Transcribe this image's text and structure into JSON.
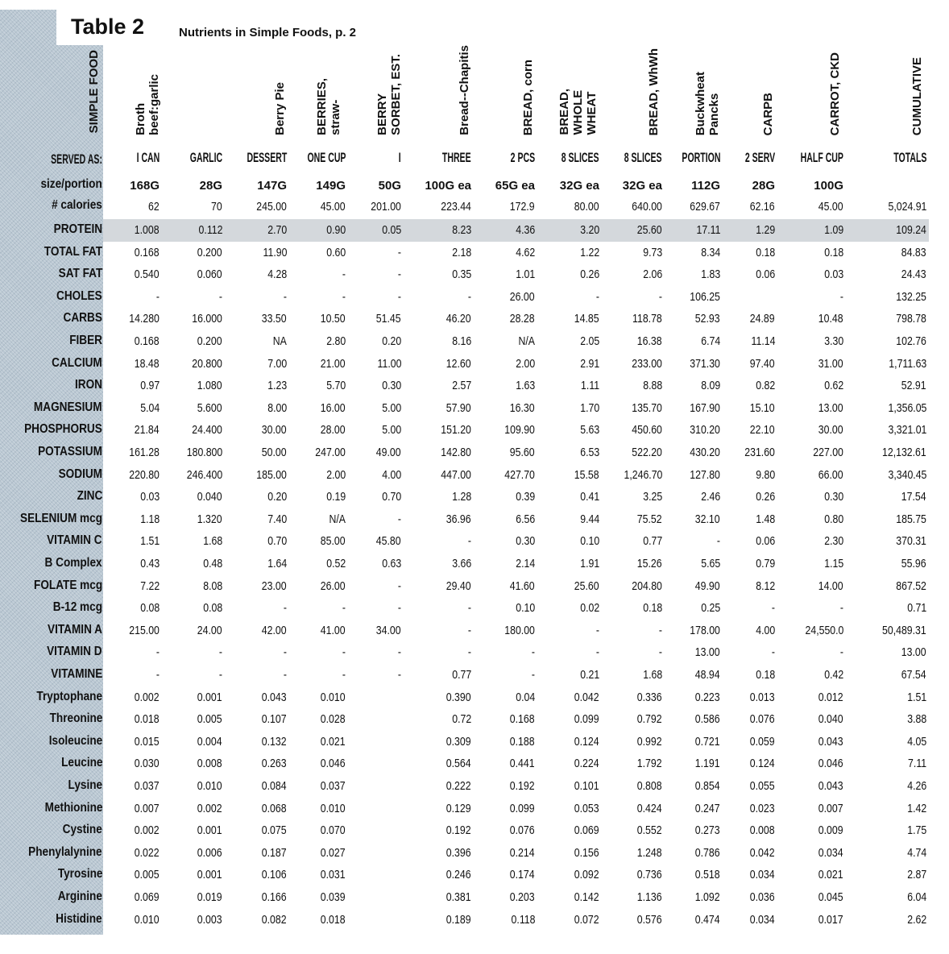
{
  "title": "Table 2",
  "subtitle": "Nutrients in Simple Foods, p. 2",
  "row_header": "SIMPLE FOOD",
  "served_label": "SERVED AS:",
  "size_label": "size/portion",
  "calories_label": "# calories",
  "highlight_color": "#d4d8dc",
  "columns": [
    {
      "header": "Broth\nbeef:garlic",
      "served": "I CAN",
      "size": "168G",
      "calories": "62"
    },
    {
      "header": "",
      "served": "GARLIC",
      "size": "28G",
      "calories": "70"
    },
    {
      "header": "Berry Pie",
      "served": "DESSERT",
      "size": "147G",
      "calories": "245.00"
    },
    {
      "header": "BERRIES,\nstraw-",
      "served": "ONE CUP",
      "size": "149G",
      "calories": "45.00"
    },
    {
      "header": "BERRY\nSORBET, EST.",
      "served": "I",
      "size": "50G",
      "calories": "201.00"
    },
    {
      "header": "Bread--Chapitis",
      "served": "THREE",
      "size": "100G ea",
      "calories": "223.44"
    },
    {
      "header": "BREAD, corn",
      "served": "2 PCS",
      "size": "65G ea",
      "calories": "172.9"
    },
    {
      "header": "BREAD,\nWHOLE\nWHEAT",
      "served": "8 SLICES",
      "size": "32G ea",
      "calories": "80.00"
    },
    {
      "header": "BREAD, WhWh",
      "served": "8 SLICES",
      "size": "32G ea",
      "calories": "640.00"
    },
    {
      "header": "Buckwheat\nPancks",
      "served": "PORTION",
      "size": "112G",
      "calories": "629.67"
    },
    {
      "header": "CARPB",
      "served": "2 SERV",
      "size": "28G",
      "calories": "62.16"
    },
    {
      "header": "CARROT, CKD",
      "served": "HALF CUP",
      "size": "100G",
      "calories": "45.00"
    },
    {
      "header": "CUMULATIVE",
      "served": "TOTALS",
      "size": "",
      "calories": "5,024.91"
    }
  ],
  "rows": [
    {
      "label": "PROTEIN",
      "values": [
        "1.008",
        "0.112",
        "2.70",
        "0.90",
        "0.05",
        "8.23",
        "4.36",
        "3.20",
        "25.60",
        "17.11",
        "1.29",
        "1.09",
        "109.24"
      ]
    },
    {
      "label": "TOTAL FAT",
      "values": [
        "0.168",
        "0.200",
        "11.90",
        "0.60",
        "-",
        "2.18",
        "4.62",
        "1.22",
        "9.73",
        "8.34",
        "0.18",
        "0.18",
        "84.83"
      ]
    },
    {
      "label": "SAT FAT",
      "values": [
        "0.540",
        "0.060",
        "4.28",
        "-",
        "-",
        "0.35",
        "1.01",
        "0.26",
        "2.06",
        "1.83",
        "0.06",
        "0.03",
        "24.43"
      ]
    },
    {
      "label": "CHOLES",
      "values": [
        "-",
        "-",
        "-",
        "-",
        "-",
        "-",
        "26.00",
        "-",
        "-",
        "106.25",
        "",
        "-",
        "132.25"
      ]
    },
    {
      "label": "CARBS",
      "values": [
        "14.280",
        "16.000",
        "33.50",
        "10.50",
        "51.45",
        "46.20",
        "28.28",
        "14.85",
        "118.78",
        "52.93",
        "24.89",
        "10.48",
        "798.78"
      ]
    },
    {
      "label": "FIBER",
      "values": [
        "0.168",
        "0.200",
        "NA",
        "2.80",
        "0.20",
        "8.16",
        "N/A",
        "2.05",
        "16.38",
        "6.74",
        "11.14",
        "3.30",
        "102.76"
      ]
    },
    {
      "label": "CALCIUM",
      "values": [
        "18.48",
        "20.800",
        "7.00",
        "21.00",
        "11.00",
        "12.60",
        "2.00",
        "2.91",
        "233.00",
        "371.30",
        "97.40",
        "31.00",
        "1,711.63"
      ]
    },
    {
      "label": "IRON",
      "values": [
        "0.97",
        "1.080",
        "1.23",
        "5.70",
        "0.30",
        "2.57",
        "1.63",
        "1.11",
        "8.88",
        "8.09",
        "0.82",
        "0.62",
        "52.91"
      ]
    },
    {
      "label": "MAGNESIUM",
      "values": [
        "5.04",
        "5.600",
        "8.00",
        "16.00",
        "5.00",
        "57.90",
        "16.30",
        "1.70",
        "135.70",
        "167.90",
        "15.10",
        "13.00",
        "1,356.05"
      ]
    },
    {
      "label": "PHOSPHORUS",
      "values": [
        "21.84",
        "24.400",
        "30.00",
        "28.00",
        "5.00",
        "151.20",
        "109.90",
        "5.63",
        "450.60",
        "310.20",
        "22.10",
        "30.00",
        "3,321.01"
      ]
    },
    {
      "label": "POTASSIUM",
      "values": [
        "161.28",
        "180.800",
        "50.00",
        "247.00",
        "49.00",
        "142.80",
        "95.60",
        "6.53",
        "522.20",
        "430.20",
        "231.60",
        "227.00",
        "12,132.61"
      ]
    },
    {
      "label": "SODIUM",
      "values": [
        "220.80",
        "246.400",
        "185.00",
        "2.00",
        "4.00",
        "447.00",
        "427.70",
        "15.58",
        "1,246.70",
        "127.80",
        "9.80",
        "66.00",
        "3,340.45"
      ]
    },
    {
      "label": "ZINC",
      "values": [
        "0.03",
        "0.040",
        "0.20",
        "0.19",
        "0.70",
        "1.28",
        "0.39",
        "0.41",
        "3.25",
        "2.46",
        "0.26",
        "0.30",
        "17.54"
      ]
    },
    {
      "label": "SELENIUM mcg",
      "values": [
        "1.18",
        "1.320",
        "7.40",
        "N/A",
        "-",
        "36.96",
        "6.56",
        "9.44",
        "75.52",
        "32.10",
        "1.48",
        "0.80",
        "185.75"
      ]
    },
    {
      "label": "VITAMIN C",
      "values": [
        "1.51",
        "1.68",
        "0.70",
        "85.00",
        "45.80",
        "-",
        "0.30",
        "0.10",
        "0.77",
        "-",
        "0.06",
        "2.30",
        "370.31"
      ]
    },
    {
      "label": "B Complex",
      "values": [
        "0.43",
        "0.48",
        "1.64",
        "0.52",
        "0.63",
        "3.66",
        "2.14",
        "1.91",
        "15.26",
        "5.65",
        "0.79",
        "1.15",
        "55.96"
      ]
    },
    {
      "label": "FOLATE mcg",
      "values": [
        "7.22",
        "8.08",
        "23.00",
        "26.00",
        "-",
        "29.40",
        "41.60",
        "25.60",
        "204.80",
        "49.90",
        "8.12",
        "14.00",
        "867.52"
      ]
    },
    {
      "label": "B-12 mcg",
      "values": [
        "0.08",
        "0.08",
        "-",
        "-",
        "-",
        "-",
        "0.10",
        "0.02",
        "0.18",
        "0.25",
        "-",
        "-",
        "0.71"
      ]
    },
    {
      "label": "VITAMIN A",
      "values": [
        "215.00",
        "24.00",
        "42.00",
        "41.00",
        "34.00",
        "-",
        "180.00",
        "-",
        "-",
        "178.00",
        "4.00",
        "24,550.0",
        "50,489.31"
      ]
    },
    {
      "label": "VITAMIN D",
      "values": [
        "-",
        "-",
        "-",
        "-",
        "-",
        "-",
        "-",
        "-",
        "-",
        "13.00",
        "-",
        "-",
        "13.00"
      ]
    },
    {
      "label": "VITAMINE",
      "values": [
        "-",
        "-",
        "-",
        "-",
        "-",
        "0.77",
        "-",
        "0.21",
        "1.68",
        "48.94",
        "0.18",
        "0.42",
        "67.54"
      ]
    },
    {
      "label": "Tryptophane",
      "values": [
        "0.002",
        "0.001",
        "0.043",
        "0.010",
        "",
        "0.390",
        "0.04",
        "0.042",
        "0.336",
        "0.223",
        "0.013",
        "0.012",
        "1.51"
      ]
    },
    {
      "label": "Threonine",
      "values": [
        "0.018",
        "0.005",
        "0.107",
        "0.028",
        "",
        "0.72",
        "0.168",
        "0.099",
        "0.792",
        "0.586",
        "0.076",
        "0.040",
        "3.88"
      ]
    },
    {
      "label": "Isoleucine",
      "values": [
        "0.015",
        "0.004",
        "0.132",
        "0.021",
        "",
        "0.309",
        "0.188",
        "0.124",
        "0.992",
        "0.721",
        "0.059",
        "0.043",
        "4.05"
      ]
    },
    {
      "label": "Leucine",
      "values": [
        "0.030",
        "0.008",
        "0.263",
        "0.046",
        "",
        "0.564",
        "0.441",
        "0.224",
        "1.792",
        "1.191",
        "0.124",
        "0.046",
        "7.11"
      ]
    },
    {
      "label": "Lysine",
      "values": [
        "0.037",
        "0.010",
        "0.084",
        "0.037",
        "",
        "0.222",
        "0.192",
        "0.101",
        "0.808",
        "0.854",
        "0.055",
        "0.043",
        "4.26"
      ]
    },
    {
      "label": "Methionine",
      "values": [
        "0.007",
        "0.002",
        "0.068",
        "0.010",
        "",
        "0.129",
        "0.099",
        "0.053",
        "0.424",
        "0.247",
        "0.023",
        "0.007",
        "1.42"
      ]
    },
    {
      "label": "Cystine",
      "values": [
        "0.002",
        "0.001",
        "0.075",
        "0.070",
        "",
        "0.192",
        "0.076",
        "0.069",
        "0.552",
        "0.273",
        "0.008",
        "0.009",
        "1.75"
      ]
    },
    {
      "label": "Phenylalynine",
      "values": [
        "0.022",
        "0.006",
        "0.187",
        "0.027",
        "",
        "0.396",
        "0.214",
        "0.156",
        "1.248",
        "0.786",
        "0.042",
        "0.034",
        "4.74"
      ]
    },
    {
      "label": "Tyrosine",
      "values": [
        "0.005",
        "0.001",
        "0.106",
        "0.031",
        "",
        "0.246",
        "0.174",
        "0.092",
        "0.736",
        "0.518",
        "0.034",
        "0.021",
        "2.87"
      ]
    },
    {
      "label": "Arginine",
      "values": [
        "0.069",
        "0.019",
        "0.166",
        "0.039",
        "",
        "0.381",
        "0.203",
        "0.142",
        "1.136",
        "1.092",
        "0.036",
        "0.045",
        "6.04"
      ]
    },
    {
      "label": "Histidine",
      "values": [
        "0.010",
        "0.003",
        "0.082",
        "0.018",
        "",
        "0.189",
        "0.118",
        "0.072",
        "0.576",
        "0.474",
        "0.034",
        "0.017",
        "2.62"
      ]
    }
  ]
}
